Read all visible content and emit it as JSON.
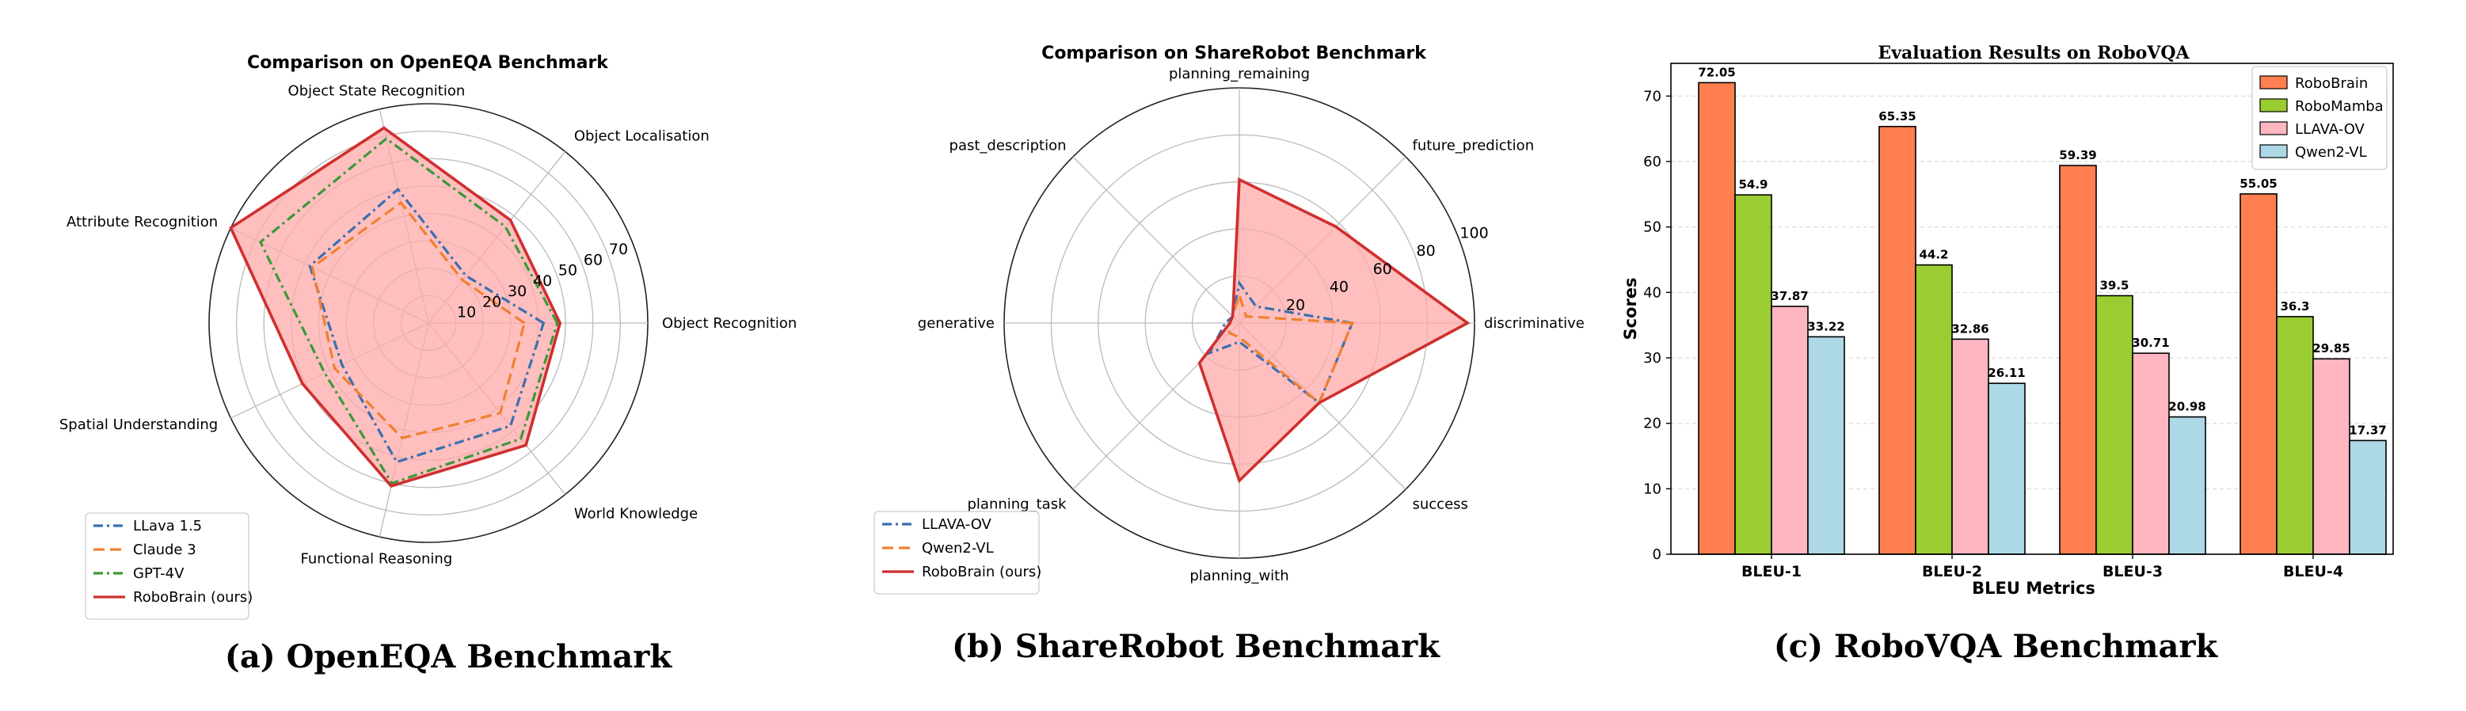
{
  "chart_data": [
    {
      "type": "radar",
      "title": "Comparison on OpenEQA Benchmark",
      "caption": "(a)  OpenEQA Benchmark",
      "axes": [
        "Object Recognition",
        "Object Localisation",
        "Object State Recognition",
        "Attribute Recognition",
        "Spatial Understanding",
        "Functional Reasoning",
        "World Knowledge"
      ],
      "radial_ticks": [
        10,
        20,
        30,
        40,
        50,
        60,
        70
      ],
      "rmax": 80,
      "grid": true,
      "legend_position": "lower-left",
      "series": [
        {
          "name": "LLava 1.5",
          "values": [
            42,
            22,
            50,
            48,
            35,
            52,
            48
          ],
          "color": "#3a6fb0",
          "dash": "dashdot"
        },
        {
          "name": "Claude 3",
          "values": [
            35,
            20,
            45,
            47,
            38,
            43,
            42
          ],
          "color": "#f08030",
          "dash": "dashed"
        },
        {
          "name": "GPT-4V",
          "values": [
            47,
            45,
            69,
            68,
            42,
            60,
            54
          ],
          "color": "#3a9a3a",
          "dash": "dashdot"
        },
        {
          "name": "RoboBrain (ours)",
          "values": [
            48,
            48,
            73,
            80,
            51,
            61,
            57
          ],
          "color": "#d02f2f",
          "dash": "solid",
          "fill": "#ffaaaa"
        }
      ]
    },
    {
      "type": "radar",
      "title": "Comparison on ShareRobot Benchmark",
      "caption": "(b)  ShareRobot Benchmark",
      "axes": [
        "discriminative",
        "future_prediction",
        "planning_remaining",
        "past_description",
        "generative",
        "planning_task",
        "planning_with",
        "success"
      ],
      "radial_ticks": [
        20,
        40,
        60,
        80,
        100
      ],
      "rmax": 100,
      "grid": true,
      "legend_position": "lower-left",
      "series": [
        {
          "name": "LLAVA-OV",
          "values": [
            48,
            10,
            17,
            4,
            6,
            18,
            8,
            48
          ],
          "color": "#3a6fb0",
          "dash": "dashdot"
        },
        {
          "name": "Qwen2-VL",
          "values": [
            48,
            4,
            12,
            4,
            4,
            6,
            6,
            48
          ],
          "color": "#f08030",
          "dash": "dashed"
        },
        {
          "name": "RoboBrain (ours)",
          "values": [
            97,
            58,
            61,
            4,
            4,
            24,
            67,
            48
          ],
          "color": "#d02f2f",
          "dash": "solid",
          "fill": "#ffaaaa"
        }
      ]
    },
    {
      "type": "bar",
      "title": "Evaluation Results on RoboVQA",
      "caption": "(c)  RoboVQA Benchmark",
      "categories": [
        "BLEU-1",
        "BLEU-2",
        "BLEU-3",
        "BLEU-4"
      ],
      "xlabel": "BLEU Metrics",
      "ylabel": "Scores",
      "ylim": [
        0,
        75
      ],
      "yticks": [
        0,
        10,
        20,
        30,
        40,
        50,
        60,
        70
      ],
      "grid": true,
      "legend_position": "top-right",
      "series": [
        {
          "name": "RoboBrain",
          "values": [
            72.05,
            65.35,
            59.39,
            55.05
          ],
          "labels": [
            "72.05",
            "65.35",
            "59.39",
            "55.05"
          ],
          "color": "#ff7f50"
        },
        {
          "name": "RoboMamba",
          "values": [
            54.9,
            44.2,
            39.5,
            36.3
          ],
          "labels": [
            "54.9",
            "44.2",
            "39.5",
            "36.3"
          ],
          "color": "#9acd32"
        },
        {
          "name": "LLAVA-OV",
          "values": [
            37.87,
            32.86,
            30.71,
            29.85
          ],
          "labels": [
            "37.87",
            "32.86",
            "30.71",
            "29.85"
          ],
          "color": "#ffb6c1"
        },
        {
          "name": "Qwen2-VL",
          "values": [
            33.22,
            26.11,
            20.98,
            17.37
          ],
          "labels": [
            "33.22",
            "26.11",
            "20.98",
            "17.37"
          ],
          "color": "#add8e6"
        }
      ]
    }
  ]
}
